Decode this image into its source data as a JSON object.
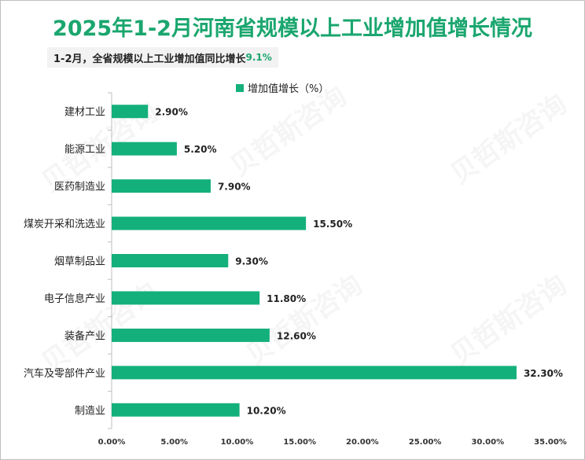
{
  "page": {
    "title": "2025年1-2月河南省规模以上工业增加值增长情况",
    "subtitle_prefix": "1-2月，全省规模以上工业增加值同比增长",
    "subtitle_value": "9.1%",
    "watermark": "贝哲斯咨询",
    "colors": {
      "bar": "#14b07c",
      "title": "#1aa66e",
      "axis": "#bfbfbf"
    }
  },
  "chart_data": {
    "type": "bar",
    "orientation": "horizontal",
    "legend": {
      "label": "增加值增长（%）",
      "position": "top"
    },
    "categories": [
      "建材工业",
      "能源工业",
      "医药制造业",
      "煤炭开采和洗选业",
      "烟草制品业",
      "电子信息产业",
      "装备产业",
      "汽车及零部件产业",
      "制造业"
    ],
    "series": [
      {
        "name": "增加值增长（%）",
        "values": [
          2.9,
          5.2,
          7.9,
          15.5,
          9.3,
          11.8,
          12.6,
          32.3,
          10.2
        ],
        "labels": [
          "2.90%",
          "5.20%",
          "7.90%",
          "15.50%",
          "9.30%",
          "11.80%",
          "12.60%",
          "32.30%",
          "10.20%"
        ]
      }
    ],
    "xlim": [
      0,
      35
    ],
    "xticks": [
      "0.00%",
      "5.00%",
      "10.00%",
      "15.00%",
      "20.00%",
      "25.00%",
      "30.00%",
      "35.00%"
    ],
    "grid": false
  }
}
